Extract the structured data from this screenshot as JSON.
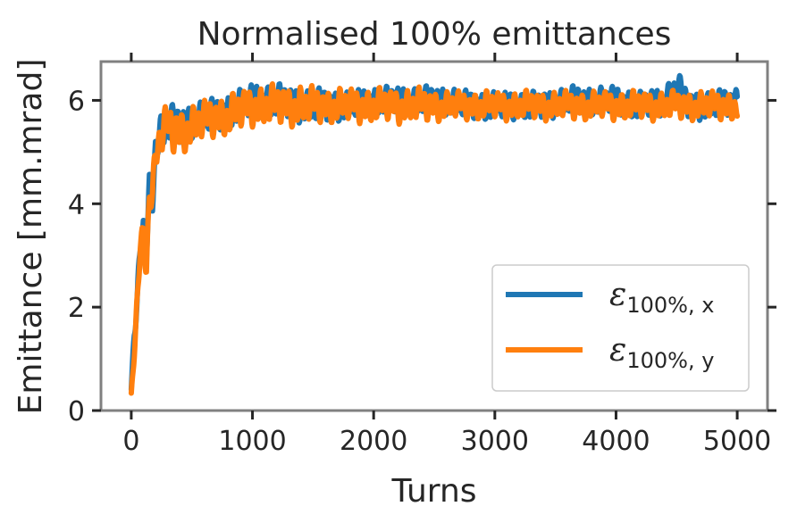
{
  "chart_data": {
    "type": "line",
    "title": "Normalised 100% emittances",
    "xlabel": "Turns",
    "ylabel": "Emittance [mm.mrad]",
    "xlim": [
      -250,
      5250
    ],
    "ylim": [
      0,
      6.75
    ],
    "xticks": [
      0,
      1000,
      2000,
      3000,
      4000,
      5000
    ],
    "yticks": [
      0,
      2,
      4,
      6
    ],
    "grid": false,
    "legend_position": "lower-right",
    "series": [
      {
        "name": "ε100%,x",
        "name_main": "ε",
        "name_sub": "100%, x",
        "color": "#1f77b4",
        "x": [
          0,
          25,
          50,
          75,
          100,
          125,
          150,
          175,
          200,
          225,
          250,
          300,
          350,
          400,
          500,
          600,
          700,
          800,
          900,
          1000,
          1200,
          1400,
          1600,
          1800,
          2000,
          2200,
          2400,
          2600,
          2800,
          3000,
          3200,
          3400,
          3600,
          3800,
          4000,
          4200,
          4400,
          4500,
          4600,
          4800,
          5000
        ],
        "y": [
          0.4,
          1.4,
          2.1,
          3.3,
          3.5,
          3.0,
          4.3,
          4.2,
          5.1,
          5.3,
          5.4,
          5.6,
          5.5,
          5.5,
          5.6,
          5.7,
          5.7,
          5.8,
          5.9,
          6.0,
          6.0,
          5.9,
          5.9,
          5.9,
          6.0,
          6.0,
          6.0,
          6.0,
          5.9,
          5.9,
          5.9,
          5.9,
          6.0,
          6.0,
          6.0,
          5.9,
          6.0,
          6.3,
          5.9,
          5.9,
          6.0
        ],
        "amplitude": [
          0.05,
          0.2,
          0.3,
          0.3,
          0.25,
          0.3,
          0.3,
          0.3,
          0.35,
          0.35,
          0.35,
          0.35,
          0.35,
          0.35,
          0.3,
          0.3,
          0.3,
          0.3,
          0.3,
          0.3,
          0.3,
          0.3,
          0.3,
          0.25,
          0.25,
          0.25,
          0.25,
          0.25,
          0.25,
          0.25,
          0.25,
          0.25,
          0.25,
          0.25,
          0.25,
          0.25,
          0.25,
          0.25,
          0.25,
          0.25,
          0.25
        ]
      },
      {
        "name": "ε100%,y",
        "name_main": "ε",
        "name_sub": "100%, y",
        "color": "#ff7f0e",
        "x": [
          0,
          25,
          50,
          75,
          100,
          125,
          150,
          175,
          200,
          225,
          250,
          300,
          350,
          400,
          500,
          600,
          700,
          800,
          900,
          1000,
          1200,
          1400,
          1600,
          1800,
          2000,
          2200,
          2400,
          2600,
          2800,
          3000,
          3200,
          3400,
          3600,
          3800,
          4000,
          4200,
          4400,
          4600,
          4800,
          5000
        ],
        "y": [
          0.3,
          1.2,
          2.0,
          3.2,
          3.4,
          2.9,
          4.2,
          4.1,
          5.0,
          5.2,
          5.3,
          5.5,
          5.4,
          5.4,
          5.5,
          5.6,
          5.7,
          5.7,
          5.8,
          5.9,
          5.9,
          5.9,
          5.9,
          5.9,
          5.9,
          5.9,
          5.9,
          5.9,
          5.9,
          5.9,
          5.9,
          5.9,
          5.9,
          5.9,
          5.9,
          5.9,
          5.9,
          5.9,
          5.9,
          5.9
        ],
        "amplitude": [
          0.05,
          0.2,
          0.3,
          0.3,
          0.25,
          0.3,
          0.3,
          0.3,
          0.35,
          0.35,
          0.35,
          0.4,
          0.4,
          0.4,
          0.35,
          0.35,
          0.35,
          0.35,
          0.35,
          0.35,
          0.35,
          0.35,
          0.3,
          0.3,
          0.3,
          0.3,
          0.3,
          0.25,
          0.25,
          0.25,
          0.25,
          0.25,
          0.25,
          0.25,
          0.25,
          0.25,
          0.25,
          0.25,
          0.25,
          0.25
        ]
      }
    ]
  }
}
